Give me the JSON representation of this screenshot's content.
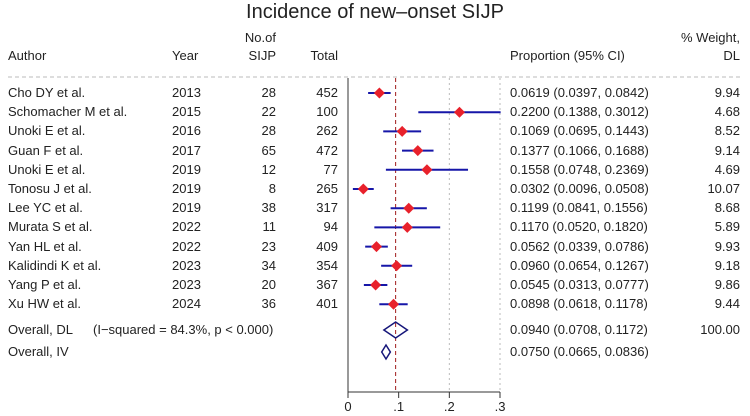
{
  "chart_data": {
    "type": "forest",
    "title": "Incidence of new–onset SIJP",
    "headers": {
      "author": "Author",
      "year": "Year",
      "n_line1": "No.of",
      "n_line2": "SIJP",
      "total": "Total",
      "ci": "Proportion (95% CI)",
      "weight_line1": "% Weight,",
      "weight_line2": "DL"
    },
    "xlim": [
      0,
      0.3
    ],
    "xticks": [
      0,
      0.1,
      0.2,
      0.3
    ],
    "xtick_labels": [
      "0",
      ".1",
      ".2",
      ".3"
    ],
    "overall_line": 0.094,
    "studies": [
      {
        "author": "Cho DY  et al.",
        "year": "2013",
        "n": "28",
        "total": "452",
        "est": 0.0619,
        "lo": 0.0397,
        "hi": 0.0842,
        "ci": "0.0619 (0.0397, 0.0842)",
        "weight": "9.94"
      },
      {
        "author": "Schomacher M et al.",
        "year": "2015",
        "n": "22",
        "total": "100",
        "est": 0.22,
        "lo": 0.1388,
        "hi": 0.3012,
        "ci": "0.2200 (0.1388, 0.3012)",
        "weight": "4.68"
      },
      {
        "author": "Unoki E et al.",
        "year": "2016",
        "n": "28",
        "total": "262",
        "est": 0.1069,
        "lo": 0.0695,
        "hi": 0.1443,
        "ci": "0.1069 (0.0695, 0.1443)",
        "weight": "8.52"
      },
      {
        "author": "Guan F et al.",
        "year": "2017",
        "n": "65",
        "total": "472",
        "est": 0.1377,
        "lo": 0.1066,
        "hi": 0.1688,
        "ci": "0.1377 (0.1066, 0.1688)",
        "weight": "9.14"
      },
      {
        "author": "Unoki E et al.",
        "year": "2019",
        "n": "12",
        "total": "77",
        "est": 0.1558,
        "lo": 0.0748,
        "hi": 0.2369,
        "ci": "0.1558 (0.0748, 0.2369)",
        "weight": "4.69"
      },
      {
        "author": "Tonosu J et al.",
        "year": "2019",
        "n": "8",
        "total": "265",
        "est": 0.0302,
        "lo": 0.0096,
        "hi": 0.0508,
        "ci": "0.0302 (0.0096, 0.0508)",
        "weight": "10.07"
      },
      {
        "author": "Lee YC et al.",
        "year": "2019",
        "n": "38",
        "total": "317",
        "est": 0.1199,
        "lo": 0.0841,
        "hi": 0.1556,
        "ci": "0.1199 (0.0841, 0.1556)",
        "weight": "8.68"
      },
      {
        "author": "Murata S et al.",
        "year": "2022",
        "n": "11",
        "total": "94",
        "est": 0.117,
        "lo": 0.052,
        "hi": 0.182,
        "ci": "0.1170 (0.0520, 0.1820)",
        "weight": "5.89"
      },
      {
        "author": "Yan HL et al.",
        "year": "2022",
        "n": "23",
        "total": "409",
        "est": 0.0562,
        "lo": 0.0339,
        "hi": 0.0786,
        "ci": "0.0562 (0.0339, 0.0786)",
        "weight": "9.93"
      },
      {
        "author": "Kalidindi K et al.",
        "year": "2023",
        "n": "34",
        "total": "354",
        "est": 0.096,
        "lo": 0.0654,
        "hi": 0.1267,
        "ci": "0.0960 (0.0654, 0.1267)",
        "weight": "9.18"
      },
      {
        "author": "Yang P et al.",
        "year": "2023",
        "n": "20",
        "total": "367",
        "est": 0.0545,
        "lo": 0.0313,
        "hi": 0.0777,
        "ci": "0.0545 (0.0313, 0.0777)",
        "weight": "9.86"
      },
      {
        "author": "Xu HW et al.",
        "year": "2024",
        "n": "36",
        "total": "401",
        "est": 0.0898,
        "lo": 0.0618,
        "hi": 0.1178,
        "ci": "0.0898 (0.0618, 0.1178)",
        "weight": "9.44"
      }
    ],
    "overall": [
      {
        "label": "Overall, DL",
        "note": "(I−squared = 84.3%, p < 0.000)",
        "est": 0.094,
        "lo": 0.0708,
        "hi": 0.1172,
        "ci": "0.0940 (0.0708, 0.1172)",
        "weight": "100.00"
      },
      {
        "label": "Overall, IV",
        "note": "",
        "est": 0.075,
        "lo": 0.0665,
        "hi": 0.0836,
        "ci": "0.0750 (0.0665, 0.0836)",
        "weight": ""
      }
    ],
    "colors": {
      "point": "#e8212b",
      "ci_line": "#1616a8",
      "diamond": "#16167a",
      "axis": "#333333",
      "ref_line": "#a01c1c",
      "grid": "#bbbbbb"
    }
  }
}
